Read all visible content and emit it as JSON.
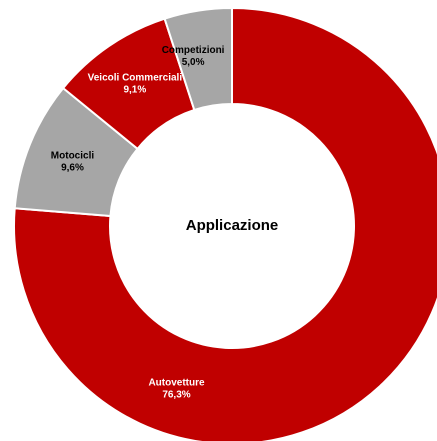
{
  "chart_data": {
    "type": "pie",
    "title": "Applicazione",
    "donut": true,
    "categories": [
      "Autovetture",
      "Motocicli",
      "Veicoli Commerciali",
      "Competizioni"
    ],
    "values": [
      76.3,
      9.6,
      9.1,
      5.0
    ],
    "labels": [
      "76,3%",
      "9,6%",
      "9,1%",
      "5,0%"
    ],
    "colors": [
      "#c00000",
      "#a6a6a6",
      "#c00000",
      "#a6a6a6"
    ],
    "label_colors": [
      "#ffffff",
      "#000000",
      "#ffffff",
      "#000000"
    ],
    "start_angle_deg": 0,
    "direction": "clockwise"
  }
}
